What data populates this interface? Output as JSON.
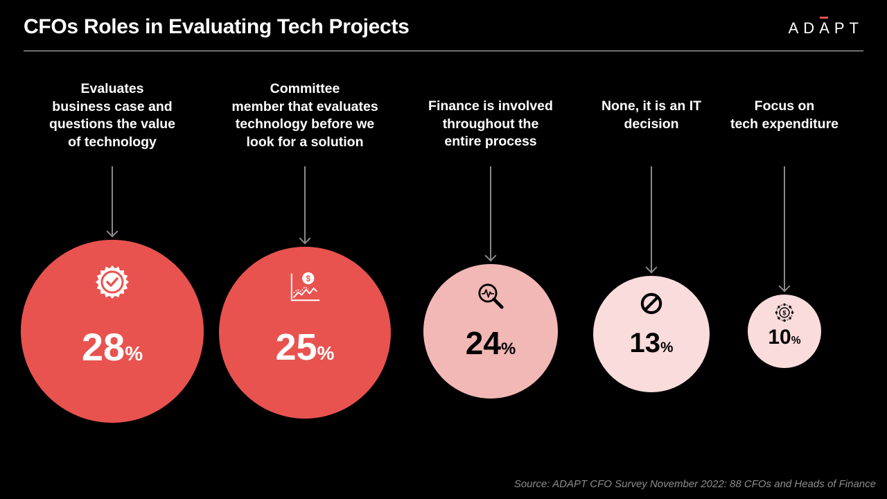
{
  "header": {
    "title": "CFOs Roles in Evaluating Tech Projects",
    "logo_text": "ADAPT"
  },
  "chart_data": {
    "type": "bubble",
    "title": "CFOs Roles in Evaluating Tech Projects",
    "unit": "%",
    "categories": [
      "Evaluates business case and questions the value of technology",
      "Committee member that evaluates technology before we look for a solution",
      "Finance is involved throughout the entire process",
      "None, it is an IT decision",
      "Focus on tech expenditure"
    ],
    "values": [
      28,
      25,
      24,
      13,
      10
    ],
    "items": [
      {
        "label": "Evaluates\nbusiness case and\nquestions the value\nof technology",
        "value": "28",
        "unit": "%",
        "icon": "badge-check-icon",
        "fill": "#e8534f",
        "text_color": "#ffffff"
      },
      {
        "label": "Committee\nmember that evaluates\ntechnology before we\nlook for a solution",
        "value": "25",
        "unit": "%",
        "icon": "dollar-chart-icon",
        "fill": "#e8534f",
        "text_color": "#ffffff"
      },
      {
        "label": "Finance is involved\nthroughout the\nentire process",
        "value": "24",
        "unit": "%",
        "icon": "magnifier-pulse-icon",
        "fill": "#f2b8b6",
        "text_color": "#000000"
      },
      {
        "label": "None, it is an IT\ndecision",
        "value": "13",
        "unit": "%",
        "icon": "prohibited-icon",
        "fill": "#fbdcdc",
        "text_color": "#000000"
      },
      {
        "label": "Focus on\ntech expenditure",
        "value": "10",
        "unit": "%",
        "icon": "dollar-network-icon",
        "fill": "#fbdcdc",
        "text_color": "#000000"
      }
    ]
  },
  "colors": {
    "background": "#000000",
    "accent": "#e8534f",
    "mid_pink": "#f2b8b6",
    "light_pink": "#fbdcdc",
    "arrow": "#8a8a8a"
  },
  "footnote": "Source: ADAPT CFO Survey November 2022: 88 CFOs and Heads of Finance"
}
